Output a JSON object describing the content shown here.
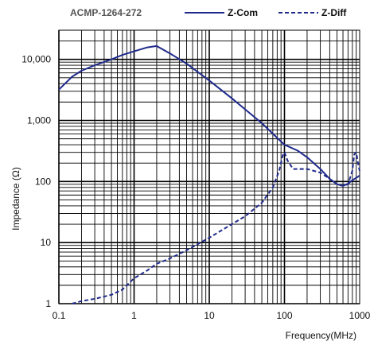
{
  "chart_data": {
    "type": "line",
    "title": "ACMP-1264-272",
    "xlabel": "Frequency(MHz)",
    "ylabel": "Impedance (Ω)",
    "xscale": "log",
    "yscale": "log",
    "xlim": [
      0.1,
      1000
    ],
    "ylim": [
      1,
      30000
    ],
    "grid": true,
    "legend_position": "top",
    "x_ticks": [
      "0.1",
      "1",
      "10",
      "100",
      "1000"
    ],
    "y_ticks": [
      "1",
      "10",
      "100",
      "1,000",
      "10,000"
    ],
    "series": [
      {
        "name": "Z-Com",
        "line_style": "solid",
        "color": "#1f2a8c",
        "points": [
          [
            0.1,
            3200
          ],
          [
            0.15,
            5200
          ],
          [
            0.2,
            6500
          ],
          [
            0.3,
            8000
          ],
          [
            0.5,
            10000
          ],
          [
            0.7,
            11800
          ],
          [
            1,
            13500
          ],
          [
            1.5,
            15700
          ],
          [
            2,
            16500
          ],
          [
            3,
            12500
          ],
          [
            5,
            8500
          ],
          [
            10,
            4500
          ],
          [
            20,
            2300
          ],
          [
            50,
            900
          ],
          [
            100,
            400
          ],
          [
            150,
            320
          ],
          [
            200,
            250
          ],
          [
            300,
            160
          ],
          [
            400,
            110
          ],
          [
            500,
            90
          ],
          [
            600,
            85
          ],
          [
            700,
            92
          ],
          [
            800,
            105
          ],
          [
            900,
            115
          ],
          [
            1000,
            125
          ]
        ]
      },
      {
        "name": "Z-Diff",
        "line_style": "dashed",
        "color": "#1f2a8c",
        "points": [
          [
            0.15,
            1
          ],
          [
            0.2,
            1.1
          ],
          [
            0.3,
            1.2
          ],
          [
            0.5,
            1.4
          ],
          [
            0.7,
            1.7
          ],
          [
            1,
            2.6
          ],
          [
            1.5,
            3.5
          ],
          [
            2,
            4.5
          ],
          [
            3,
            5.5
          ],
          [
            5,
            7.5
          ],
          [
            10,
            12
          ],
          [
            20,
            20
          ],
          [
            30,
            27
          ],
          [
            50,
            45
          ],
          [
            70,
            80
          ],
          [
            85,
            150
          ],
          [
            95,
            270
          ],
          [
            100,
            300
          ],
          [
            110,
            220
          ],
          [
            130,
            160
          ],
          [
            200,
            160
          ],
          [
            300,
            140
          ],
          [
            400,
            110
          ],
          [
            500,
            90
          ],
          [
            600,
            85
          ],
          [
            700,
            90
          ],
          [
            800,
            150
          ],
          [
            850,
            280
          ],
          [
            900,
            300
          ],
          [
            950,
            200
          ],
          [
            1000,
            150
          ]
        ]
      }
    ]
  }
}
